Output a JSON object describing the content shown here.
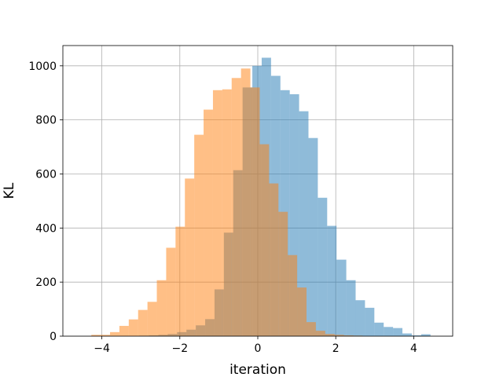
{
  "chart_data": {
    "type": "bar",
    "title": "",
    "xlabel": "iteration",
    "ylabel": "KL",
    "xlim": [
      -5,
      5
    ],
    "ylim": [
      0,
      1075
    ],
    "grid": true,
    "legend": "none",
    "x_ticks": [
      -4,
      -2,
      0,
      2,
      4
    ],
    "x_tick_labels": [
      "−4",
      "−2",
      "0",
      "2",
      "4"
    ],
    "y_ticks": [
      0,
      200,
      400,
      600,
      800,
      1000
    ],
    "y_tick_labels": [
      "0",
      "200",
      "400",
      "600",
      "800",
      "1000"
    ],
    "series": [
      {
        "color": "#1f77b4",
        "opacity": 0.5,
        "bin_edges": [
          -3.52,
          -3.28,
          -3.04,
          -2.79,
          -2.55,
          -2.31,
          -2.07,
          -1.83,
          -1.59,
          -1.35,
          -1.11,
          -0.87,
          -0.63,
          -0.39,
          -0.14,
          0.1,
          0.34,
          0.58,
          0.82,
          1.06,
          1.3,
          1.54,
          1.78,
          2.02,
          2.27,
          2.51,
          2.75,
          2.99,
          3.23,
          3.47,
          3.71,
          3.95,
          4.19,
          4.43
        ],
        "counts": [
          1,
          1,
          2,
          3,
          5,
          8,
          15,
          24,
          40,
          63,
          173,
          383,
          614,
          920,
          1000,
          1030,
          963,
          910,
          895,
          832,
          733,
          512,
          408,
          283,
          207,
          133,
          105,
          50,
          34,
          30,
          10,
          3,
          7
        ]
      },
      {
        "color": "#ff7f0e",
        "opacity": 0.5,
        "bin_edges": [
          -4.27,
          -4.03,
          -3.79,
          -3.55,
          -3.31,
          -3.07,
          -2.83,
          -2.59,
          -2.35,
          -2.11,
          -1.87,
          -1.63,
          -1.39,
          -1.15,
          -0.91,
          -0.67,
          -0.43,
          -0.19,
          0.05,
          0.29,
          0.53,
          0.77,
          1.01,
          1.25,
          1.49,
          1.73,
          1.97,
          2.21,
          2.45,
          2.69
        ],
        "counts": [
          5,
          5,
          15,
          38,
          62,
          97,
          127,
          207,
          327,
          405,
          583,
          745,
          838,
          910,
          913,
          955,
          990,
          920,
          710,
          565,
          460,
          300,
          180,
          52,
          20,
          8,
          5,
          3,
          2
        ]
      }
    ]
  }
}
